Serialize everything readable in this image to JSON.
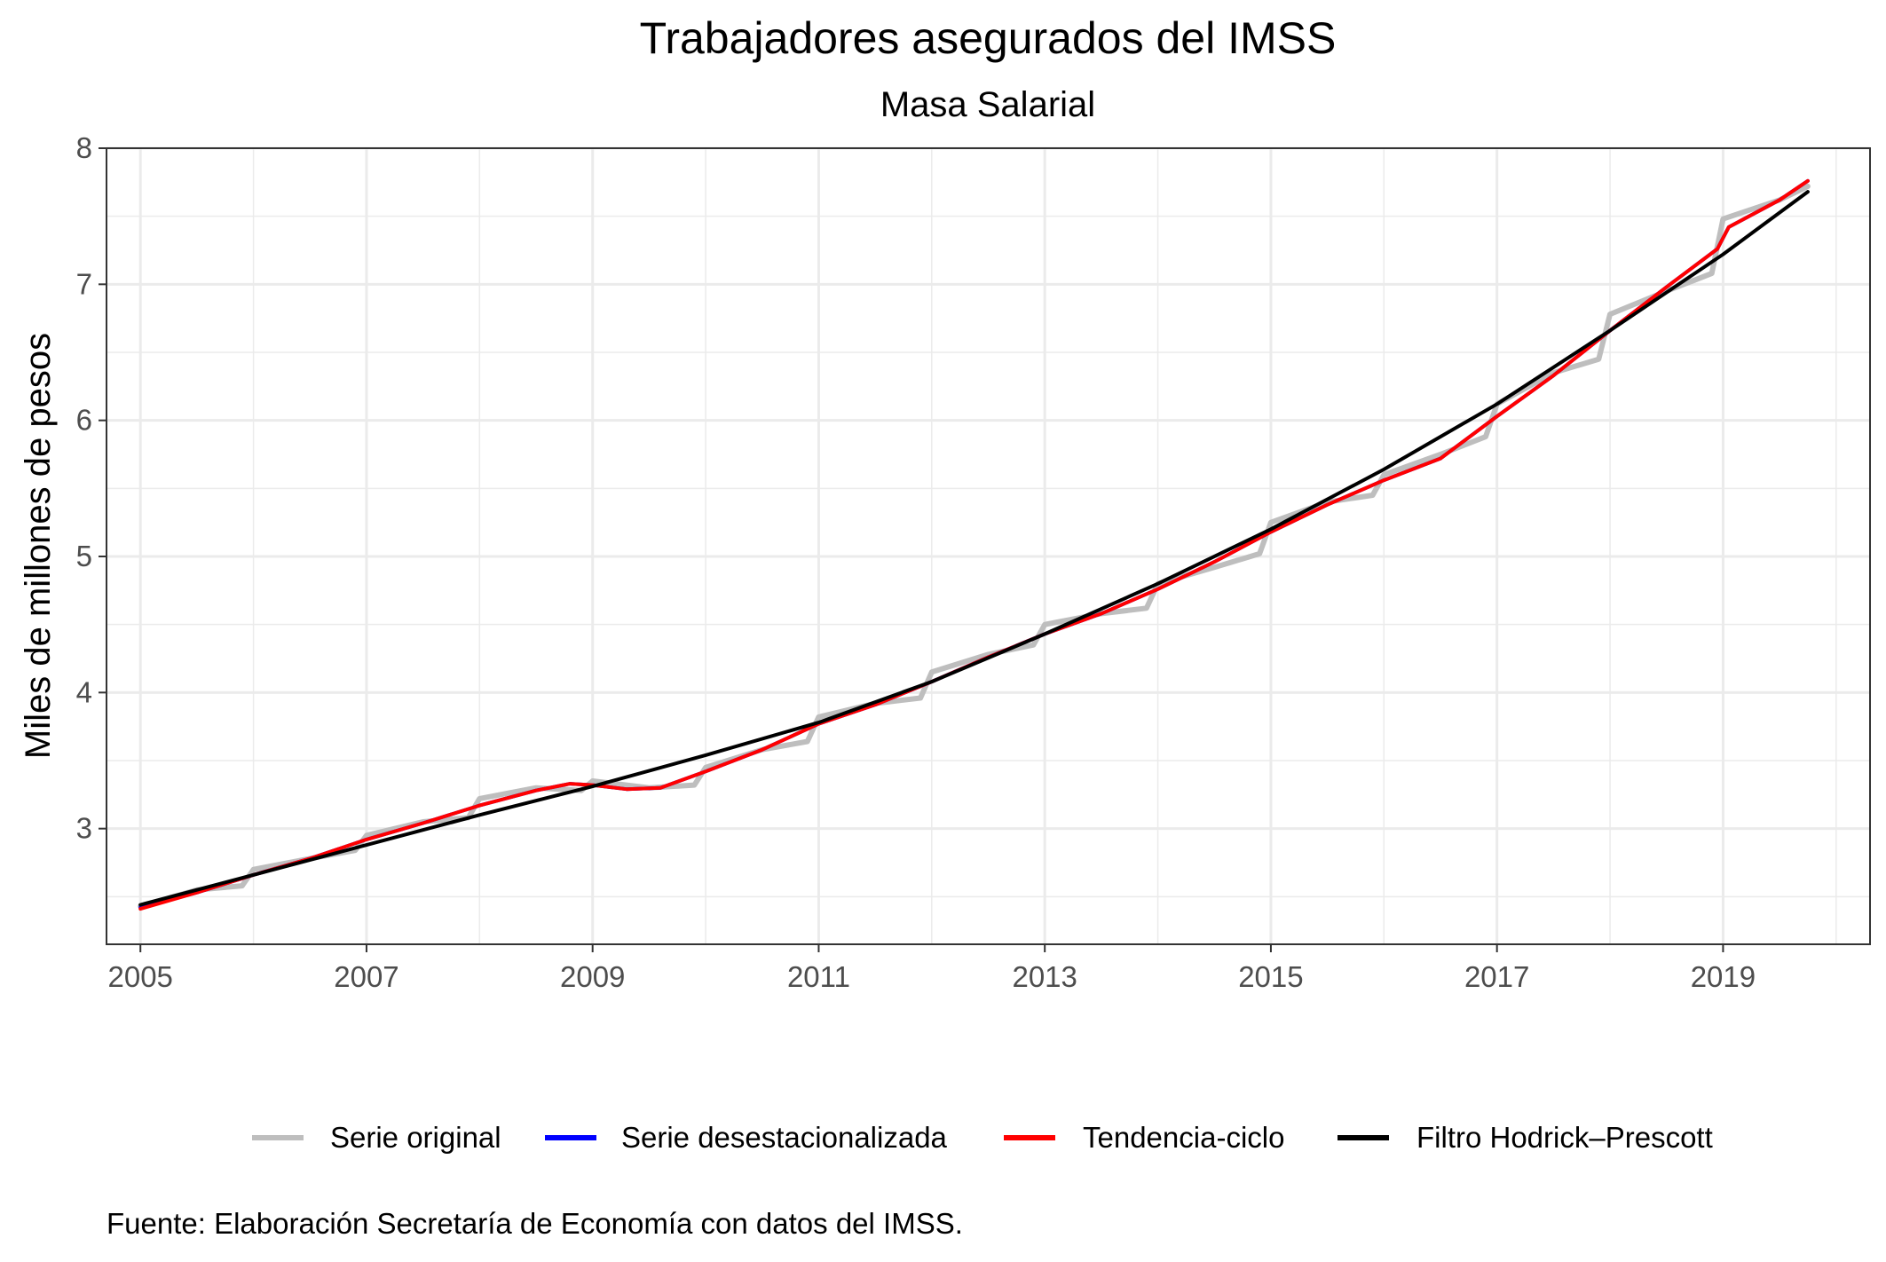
{
  "chart_data": {
    "type": "line",
    "title": "Trabajadores asegurados del IMSS",
    "subtitle": "Masa Salarial",
    "xlabel": "",
    "ylabel": "Miles de millones de pesos",
    "caption": "Fuente: Elaboración Secretaría de Economía con datos del IMSS.",
    "xlim": [
      2004.7,
      2020.3
    ],
    "ylim": [
      2.15,
      8.0
    ],
    "x_ticks": [
      2005,
      2007,
      2009,
      2011,
      2013,
      2015,
      2017,
      2019
    ],
    "x_tick_labels": [
      "2005",
      "2007",
      "2009",
      "2011",
      "2013",
      "2015",
      "2017",
      "2019"
    ],
    "x_minor_ticks": [
      2006,
      2008,
      2010,
      2012,
      2014,
      2016,
      2018,
      2020
    ],
    "y_ticks": [
      3,
      4,
      5,
      6,
      7,
      8
    ],
    "y_tick_labels": [
      "3",
      "4",
      "5",
      "6",
      "7",
      "8"
    ],
    "y_minor_ticks": [
      2.5,
      3.5,
      4.5,
      5.5,
      6.5,
      7.5
    ],
    "grid": true,
    "legend_position": "bottom",
    "series": [
      {
        "name": "Serie original",
        "color": "#bebebe",
        "x": [
          2005.0,
          2005.5,
          2005.9,
          2006.0,
          2006.5,
          2006.9,
          2007.0,
          2007.5,
          2007.9,
          2008.0,
          2008.5,
          2008.9,
          2009.0,
          2009.5,
          2009.9,
          2010.0,
          2010.5,
          2010.9,
          2011.0,
          2011.5,
          2011.9,
          2012.0,
          2012.5,
          2012.9,
          2013.0,
          2013.5,
          2013.9,
          2014.0,
          2014.5,
          2014.9,
          2015.0,
          2015.5,
          2015.9,
          2016.0,
          2016.5,
          2016.9,
          2017.0,
          2017.5,
          2017.9,
          2018.0,
          2018.5,
          2018.9,
          2019.0,
          2019.5,
          2019.75
        ],
        "y": [
          2.43,
          2.55,
          2.58,
          2.7,
          2.78,
          2.84,
          2.95,
          3.05,
          3.08,
          3.22,
          3.3,
          3.28,
          3.35,
          3.3,
          3.32,
          3.45,
          3.58,
          3.64,
          3.82,
          3.92,
          3.96,
          4.15,
          4.28,
          4.35,
          4.5,
          4.58,
          4.62,
          4.8,
          4.92,
          5.02,
          5.25,
          5.4,
          5.45,
          5.6,
          5.75,
          5.88,
          6.12,
          6.35,
          6.45,
          6.78,
          6.95,
          7.08,
          7.48,
          7.62,
          7.72
        ]
      },
      {
        "name": "Serie desestacionalizada",
        "color": "#0000ff",
        "x": [
          2005.0,
          2005.5,
          2006.0,
          2006.5,
          2007.0,
          2007.5,
          2008.0,
          2008.5,
          2008.8,
          2009.0,
          2009.3,
          2009.6,
          2010.0,
          2010.5,
          2011.0,
          2011.5,
          2012.0,
          2012.5,
          2013.0,
          2013.5,
          2014.0,
          2014.5,
          2015.0,
          2015.5,
          2016.0,
          2016.5,
          2017.0,
          2017.5,
          2018.0,
          2018.5,
          2018.95,
          2019.05,
          2019.5,
          2019.75
        ],
        "y": [
          2.42,
          2.53,
          2.66,
          2.78,
          2.92,
          3.04,
          3.17,
          3.28,
          3.33,
          3.32,
          3.29,
          3.3,
          3.42,
          3.58,
          3.77,
          3.91,
          4.08,
          4.26,
          4.43,
          4.58,
          4.76,
          4.96,
          5.18,
          5.38,
          5.56,
          5.72,
          6.03,
          6.33,
          6.66,
          6.98,
          7.26,
          7.42,
          7.62,
          7.76
        ]
      },
      {
        "name": "Tendencia-ciclo",
        "color": "#ff0000",
        "x": [
          2005.0,
          2005.5,
          2006.0,
          2006.5,
          2007.0,
          2007.5,
          2008.0,
          2008.5,
          2008.8,
          2009.0,
          2009.3,
          2009.6,
          2010.0,
          2010.5,
          2011.0,
          2011.5,
          2012.0,
          2012.5,
          2013.0,
          2013.5,
          2014.0,
          2014.5,
          2015.0,
          2015.5,
          2016.0,
          2016.5,
          2017.0,
          2017.5,
          2018.0,
          2018.5,
          2018.95,
          2019.05,
          2019.5,
          2019.75
        ],
        "y": [
          2.41,
          2.53,
          2.66,
          2.78,
          2.92,
          3.04,
          3.17,
          3.28,
          3.33,
          3.32,
          3.29,
          3.3,
          3.42,
          3.58,
          3.77,
          3.91,
          4.08,
          4.26,
          4.43,
          4.58,
          4.76,
          4.96,
          5.18,
          5.38,
          5.56,
          5.72,
          6.03,
          6.33,
          6.66,
          6.98,
          7.26,
          7.42,
          7.62,
          7.76
        ]
      },
      {
        "name": "Filtro Hodrick–Prescott",
        "color": "#000000",
        "x": [
          2005.0,
          2006.0,
          2007.0,
          2008.0,
          2009.0,
          2010.0,
          2011.0,
          2012.0,
          2013.0,
          2014.0,
          2015.0,
          2016.0,
          2017.0,
          2018.0,
          2019.0,
          2019.75
        ],
        "y": [
          2.44,
          2.66,
          2.88,
          3.1,
          3.31,
          3.54,
          3.78,
          4.08,
          4.43,
          4.8,
          5.2,
          5.64,
          6.12,
          6.66,
          7.22,
          7.68
        ]
      }
    ]
  }
}
